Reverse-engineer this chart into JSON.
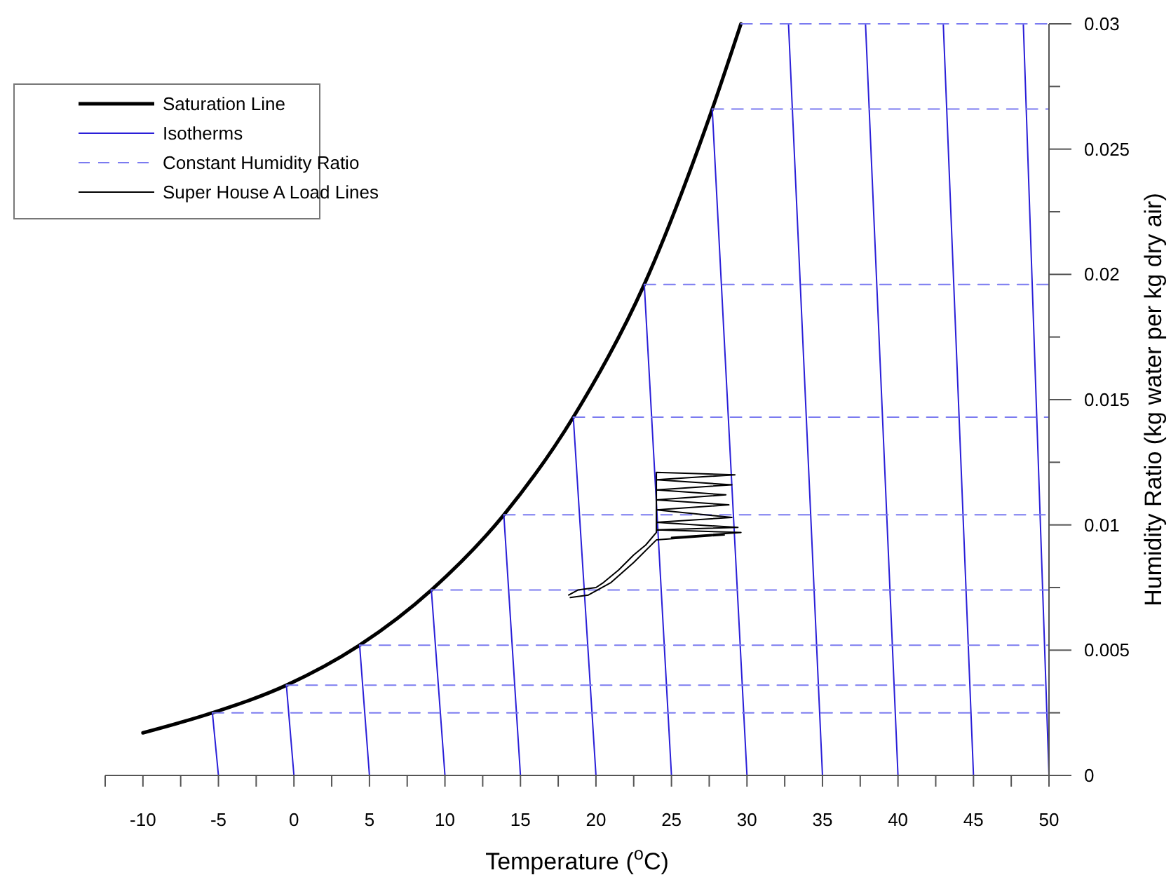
{
  "chart_data": {
    "type": "line",
    "xlabel": "Temperature ($^{o}$C)",
    "ylabel": "Humidity Ratio (kg water per kg dry air)",
    "xlim": [
      -12.5,
      50
    ],
    "ylim": [
      0,
      0.03
    ],
    "xticks": [
      {
        "value": -12.5,
        "label": null
      },
      -10,
      {
        "value": -7.5,
        "label": null
      },
      -5,
      {
        "value": -2.5,
        "label": null
      },
      0,
      {
        "value": 2.5,
        "label": null
      },
      5,
      {
        "value": 7.5,
        "label": null
      },
      10,
      {
        "value": 12.5,
        "label": null
      },
      15,
      {
        "value": 17.5,
        "label": null
      },
      20,
      {
        "value": 22.5,
        "label": null
      },
      25,
      {
        "value": 27.5,
        "label": null
      },
      30,
      {
        "value": 32.5,
        "label": null
      },
      35,
      {
        "value": 37.5,
        "label": null
      },
      40,
      {
        "value": 42.5,
        "label": null
      },
      45,
      {
        "value": 47.5,
        "label": null
      },
      50
    ],
    "yticks": [
      0,
      {
        "value": 0.0025,
        "label": null
      },
      0.005,
      {
        "value": 0.0075,
        "label": null
      },
      0.01,
      {
        "value": 0.0125,
        "label": null
      },
      0.015,
      {
        "value": 0.0175,
        "label": null
      },
      0.02,
      {
        "value": 0.0225,
        "label": null
      },
      0.025,
      {
        "value": 0.0275,
        "label": null
      },
      0.03
    ],
    "legend": "top left",
    "grid": false,
    "marker": "none",
    "series": [
      {
        "name": "Saturation Line",
        "color": "#000000",
        "line_style": "solid",
        "x": [
          -10,
          -5.4,
          -0.5,
          4.35,
          9.1,
          13.9,
          18.5,
          23.2,
          27.7,
          29.6
        ],
        "values": [
          0.0017,
          0.0025,
          0.0036,
          0.0052,
          0.0074,
          0.0104,
          0.0143,
          0.0196,
          0.0266,
          0.03
        ]
      },
      {
        "name": "Isotherms",
        "color": "#2a1fd8",
        "line_style": "solid",
        "x": [
          -5,
          -5.4
        ],
        "values": [
          0,
          0.0025
        ]
      },
      {
        "color": "#2a1fd8",
        "line_style": "solid",
        "x": [
          0,
          -0.5
        ],
        "values": [
          0,
          0.0036
        ]
      },
      {
        "color": "#2a1fd8",
        "line_style": "solid",
        "x": [
          5,
          4.35
        ],
        "values": [
          0,
          0.0052
        ]
      },
      {
        "color": "#2a1fd8",
        "line_style": "solid",
        "x": [
          10,
          9.1
        ],
        "values": [
          0,
          0.0074
        ]
      },
      {
        "color": "#2a1fd8",
        "line_style": "solid",
        "x": [
          15,
          13.9
        ],
        "values": [
          0,
          0.0104
        ]
      },
      {
        "color": "#2a1fd8",
        "line_style": "solid",
        "x": [
          20,
          18.5
        ],
        "values": [
          0,
          0.0143
        ]
      },
      {
        "color": "#2a1fd8",
        "line_style": "solid",
        "x": [
          25,
          23.2
        ],
        "values": [
          0,
          0.0196
        ]
      },
      {
        "color": "#2a1fd8",
        "line_style": "solid",
        "x": [
          30,
          27.7
        ],
        "values": [
          0,
          0.0266
        ]
      },
      {
        "color": "#2a1fd8",
        "line_style": "solid",
        "x": [
          35,
          32.75
        ],
        "values": [
          0,
          0.03
        ]
      },
      {
        "color": "#2a1fd8",
        "line_style": "solid",
        "x": [
          40,
          37.85
        ],
        "values": [
          0,
          0.03
        ]
      },
      {
        "color": "#2a1fd8",
        "line_style": "solid",
        "x": [
          45,
          43
        ],
        "values": [
          0,
          0.03
        ]
      },
      {
        "color": "#2a1fd8",
        "line_style": "solid",
        "x": [
          50,
          48.3
        ],
        "values": [
          0,
          0.03
        ]
      },
      {
        "name": "Constant Humidity Ratio",
        "color": "#7b7bf0",
        "line_style": "dashed",
        "x": [
          -5.4,
          50
        ],
        "values": [
          0.0025,
          0.0025
        ]
      },
      {
        "color": "#7b7bf0",
        "line_style": "dashed",
        "x": [
          -0.5,
          50
        ],
        "values": [
          0.0036,
          0.0036
        ]
      },
      {
        "color": "#7b7bf0",
        "line_style": "dashed",
        "x": [
          4.35,
          50
        ],
        "values": [
          0.0052,
          0.0052
        ]
      },
      {
        "color": "#7b7bf0",
        "line_style": "dashed",
        "x": [
          9.1,
          50
        ],
        "values": [
          0.0074,
          0.0074
        ]
      },
      {
        "color": "#7b7bf0",
        "line_style": "dashed",
        "x": [
          13.9,
          50
        ],
        "values": [
          0.0104,
          0.0104
        ]
      },
      {
        "color": "#7b7bf0",
        "line_style": "dashed",
        "x": [
          18.5,
          50
        ],
        "values": [
          0.0143,
          0.0143
        ]
      },
      {
        "color": "#7b7bf0",
        "line_style": "dashed",
        "x": [
          23.2,
          50
        ],
        "values": [
          0.0196,
          0.0196
        ]
      },
      {
        "color": "#7b7bf0",
        "line_style": "dashed",
        "x": [
          27.7,
          50
        ],
        "values": [
          0.0266,
          0.0266
        ]
      },
      {
        "color": "#7b7bf0",
        "line_style": "dashed",
        "x": [
          29.6,
          50
        ],
        "values": [
          0.03,
          0.03
        ]
      },
      {
        "name": "Super House A Load Lines",
        "color": "#000000",
        "line_style": "solid",
        "x": [
          18.2,
          18.8,
          20,
          20.5,
          21.5,
          22.5,
          23.3,
          24,
          24,
          29.2,
          24,
          29,
          24,
          28.6,
          24,
          28.8,
          24,
          29,
          24,
          29.4,
          24,
          29.6,
          25,
          28.5,
          24,
          22.5,
          21,
          19.5,
          18.3
        ],
        "values": [
          0.0072,
          0.0074,
          0.0075,
          0.0077,
          0.0082,
          0.0088,
          0.0092,
          0.0097,
          0.0121,
          0.012,
          0.0118,
          0.0116,
          0.0114,
          0.0112,
          0.011,
          0.0108,
          0.0106,
          0.0103,
          0.0101,
          0.0099,
          0.0098,
          0.0097,
          0.0095,
          0.0096,
          0.0094,
          0.0085,
          0.0077,
          0.0072,
          0.0071
        ]
      }
    ]
  }
}
